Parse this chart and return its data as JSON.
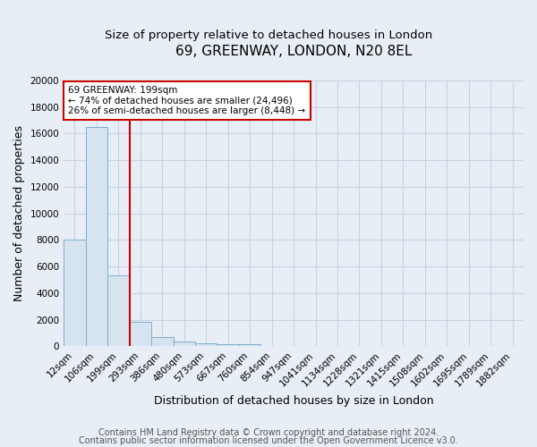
{
  "title": "69, GREENWAY, LONDON, N20 8EL",
  "subtitle": "Size of property relative to detached houses in London",
  "xlabel": "Distribution of detached houses by size in London",
  "ylabel": "Number of detached properties",
  "categories": [
    "12sqm",
    "106sqm",
    "199sqm",
    "293sqm",
    "386sqm",
    "480sqm",
    "573sqm",
    "667sqm",
    "760sqm",
    "854sqm",
    "947sqm",
    "1041sqm",
    "1134sqm",
    "1228sqm",
    "1321sqm",
    "1415sqm",
    "1508sqm",
    "1602sqm",
    "1695sqm",
    "1789sqm",
    "1882sqm"
  ],
  "values": [
    8000,
    16500,
    5300,
    1800,
    700,
    380,
    220,
    160,
    130,
    0,
    0,
    0,
    0,
    0,
    0,
    0,
    0,
    0,
    0,
    0,
    0
  ],
  "bar_color": "#d6e4f0",
  "bar_edge_color": "#7aafd4",
  "red_line_x": 2.5,
  "annotation_text": "69 GREENWAY: 199sqm\n← 74% of detached houses are smaller (24,496)\n26% of semi-detached houses are larger (8,448) →",
  "annotation_box_color": "#ffffff",
  "annotation_border_color": "#cc0000",
  "ylim": [
    0,
    20000
  ],
  "yticks": [
    0,
    2000,
    4000,
    6000,
    8000,
    10000,
    12000,
    14000,
    16000,
    18000,
    20000
  ],
  "footer_line1": "Contains HM Land Registry data © Crown copyright and database right 2024.",
  "footer_line2": "Contains public sector information licensed under the Open Government Licence v3.0.",
  "bg_color": "#e8eef5",
  "plot_bg_color": "#e8eef5",
  "grid_color": "#c8d4e0",
  "title_fontsize": 11,
  "subtitle_fontsize": 9.5,
  "axis_label_fontsize": 9,
  "tick_fontsize": 7.5,
  "footer_fontsize": 7
}
